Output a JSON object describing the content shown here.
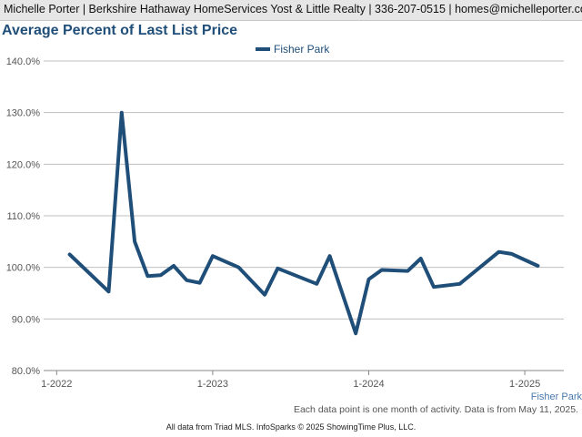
{
  "header": {
    "text": "Michelle Porter | Berkshire Hathaway HomeServices Yost & Little Realty | 336-207-0515 | homes@michelleporter.com"
  },
  "colors": {
    "series": "#1f4e79",
    "grid": "#bfbfbf",
    "axis": "#888888"
  },
  "footnote": "Each data point is one month of activity. Data is from May 11, 2025.",
  "footer": "All data from Triad MLS. InfoSparks © 2025 ShowingTime Plus, LLC.",
  "chart_data": {
    "type": "line",
    "title": "Average Percent of Last List Price",
    "xlabel": "",
    "ylabel": "",
    "ylim": [
      80,
      140
    ],
    "yticks": [
      {
        "value": 80,
        "label": "80.0%"
      },
      {
        "value": 90,
        "label": "90.0%"
      },
      {
        "value": 100,
        "label": "100.0%"
      },
      {
        "value": 110,
        "label": "110.0%"
      },
      {
        "value": 120,
        "label": "120.0%"
      },
      {
        "value": 130,
        "label": "130.0%"
      },
      {
        "value": 140,
        "label": "140.0%"
      }
    ],
    "xlim": [
      "2021-12",
      "2025-04"
    ],
    "xticks": [
      {
        "value": "2022-01",
        "label": "1-2022"
      },
      {
        "value": "2023-01",
        "label": "1-2023"
      },
      {
        "value": "2024-01",
        "label": "1-2024"
      },
      {
        "value": "2025-01",
        "label": "1-2025"
      }
    ],
    "grid": true,
    "legend": "top-center",
    "series": [
      {
        "name": "Fisher Park",
        "x": [
          "2022-02",
          "2022-05",
          "2022-06",
          "2022-07",
          "2022-08",
          "2022-09",
          "2022-10",
          "2022-11",
          "2022-12",
          "2023-01",
          "2023-03",
          "2023-05",
          "2023-06",
          "2023-09",
          "2023-10",
          "2023-12",
          "2024-01",
          "2024-02",
          "2024-04",
          "2024-05",
          "2024-06",
          "2024-08",
          "2024-11",
          "2024-12",
          "2025-02"
        ],
        "values": [
          102.5,
          95.3,
          130.0,
          105.0,
          98.3,
          98.5,
          100.3,
          97.5,
          97.0,
          102.2,
          100.0,
          94.7,
          99.8,
          96.8,
          102.2,
          87.2,
          97.7,
          99.5,
          99.3,
          101.7,
          96.2,
          96.8,
          103.0,
          102.6,
          100.3
        ]
      }
    ]
  }
}
